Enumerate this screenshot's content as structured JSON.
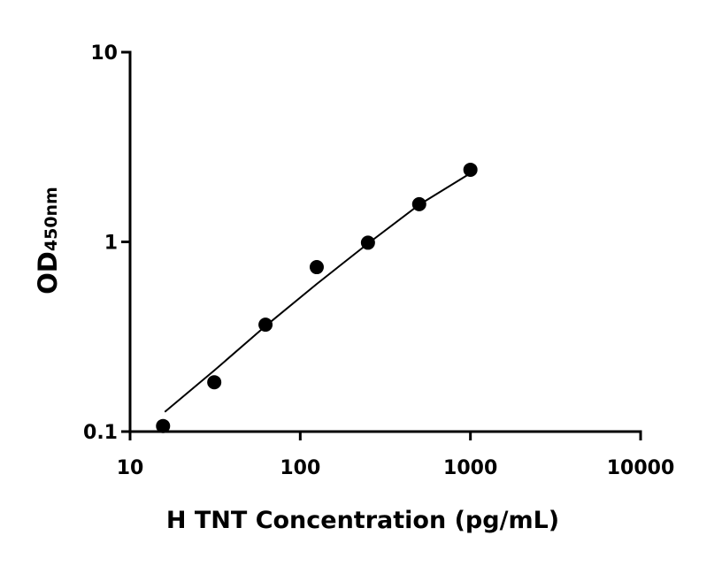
{
  "chart_data": {
    "type": "scatter",
    "x_label": "H TNT Concentration (pg/mL)",
    "y_label": "OD",
    "y_label_subscript": "450nm",
    "x": [
      15.625,
      31.25,
      62.5,
      125,
      250,
      500,
      1000
    ],
    "values": [
      0.107,
      0.182,
      0.366,
      0.736,
      0.99,
      1.58,
      2.4
    ],
    "color": "#000000",
    "curve": {
      "x": [
        16,
        31.25,
        62.5,
        125,
        250,
        500,
        1000
      ],
      "values": [
        0.127,
        0.21,
        0.36,
        0.6,
        0.98,
        1.57,
        2.3
      ]
    },
    "xlim": [
      10,
      10000
    ],
    "ylim": [
      0.1,
      10
    ],
    "xticks": [
      10,
      100,
      1000,
      10000
    ],
    "yticks": [
      0.1,
      1,
      10
    ],
    "log_x": true,
    "log_y": true,
    "grid": false
  }
}
